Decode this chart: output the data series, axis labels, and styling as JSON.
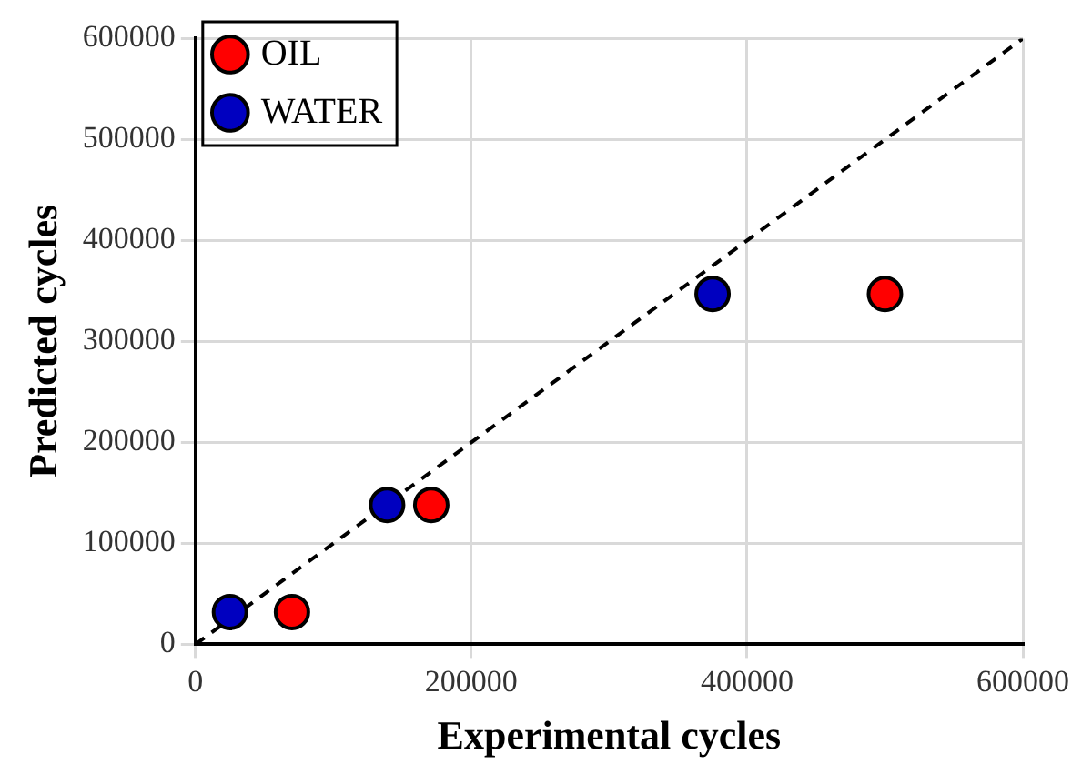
{
  "chart_data": {
    "type": "scatter",
    "xlabel": "Experimental cycles",
    "ylabel": "Predicted cycles",
    "xlim": [
      0,
      600000
    ],
    "xticks": [
      0,
      200000,
      400000,
      600000
    ],
    "ylim": [
      0,
      600000
    ],
    "yticks": [
      0,
      100000,
      200000,
      300000,
      400000,
      500000,
      600000
    ],
    "grid": true,
    "legend": "top left",
    "marker": "circle",
    "series": [
      {
        "name": "OIL",
        "color": "#ff0000",
        "x": [
          70000,
          171000,
          500000
        ],
        "values": [
          32000,
          138000,
          347000
        ]
      },
      {
        "name": "WATER",
        "color": "#0000c0",
        "x": [
          25000,
          139000,
          375000
        ],
        "values": [
          32000,
          138000,
          347000
        ]
      },
      {
        "type": "line",
        "color": "#000000",
        "line_style": "dashed",
        "marker": "none",
        "x": [
          0,
          600000
        ],
        "values": [
          0,
          600000
        ]
      }
    ]
  }
}
